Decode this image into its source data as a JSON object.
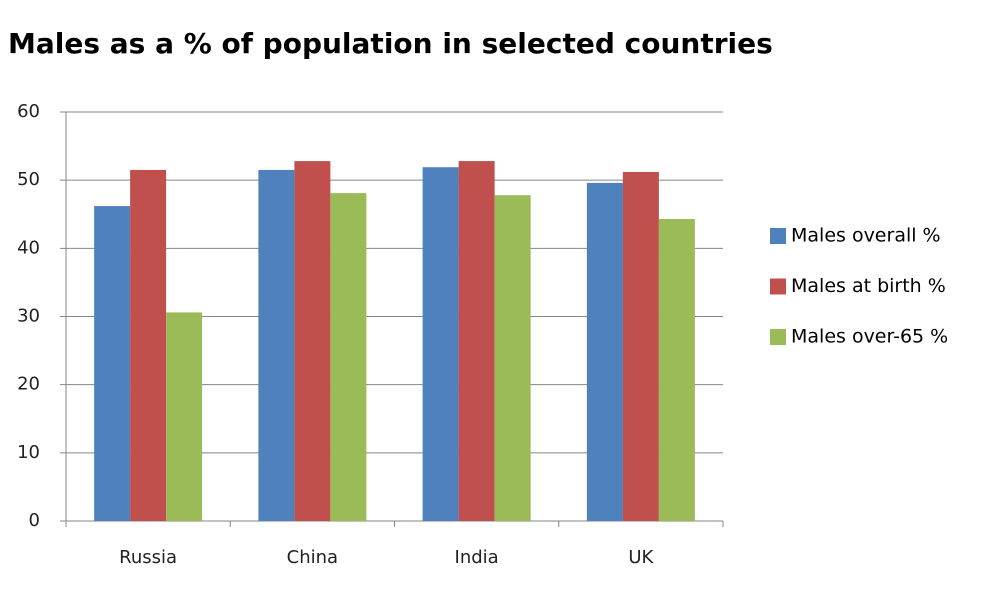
{
  "chart_data": {
    "type": "bar",
    "title": "Males as a % of population in selected countries",
    "categories": [
      "Russia",
      "China",
      "India",
      "UK"
    ],
    "series": [
      {
        "name": "Males overall %",
        "color": "#4f81bd",
        "values": [
          46.2,
          51.5,
          51.9,
          49.6
        ]
      },
      {
        "name": "Males at birth %",
        "color": "#c0504d",
        "values": [
          51.5,
          52.8,
          52.8,
          51.2
        ]
      },
      {
        "name": "Males over-65 %",
        "color": "#9bbb59",
        "values": [
          30.6,
          48.1,
          47.8,
          44.3
        ]
      }
    ],
    "ylim": [
      0,
      60
    ],
    "yticks": [
      0,
      10,
      20,
      30,
      40,
      50,
      60
    ],
    "grid": true,
    "legend": "right"
  }
}
